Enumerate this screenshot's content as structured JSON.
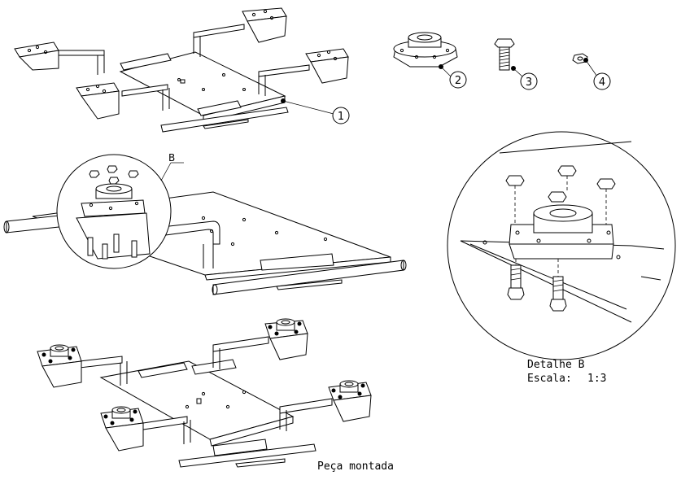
{
  "balloons": [
    {
      "id": "1",
      "label": "1"
    },
    {
      "id": "2",
      "label": "2"
    },
    {
      "id": "3",
      "label": "3"
    },
    {
      "id": "4",
      "label": "4"
    }
  ],
  "detail_marker": "B",
  "detail_title": "Detalhe B",
  "detail_scale_label": "Escala:",
  "detail_scale_value": "1:3",
  "assembled_caption": "Peça montada"
}
